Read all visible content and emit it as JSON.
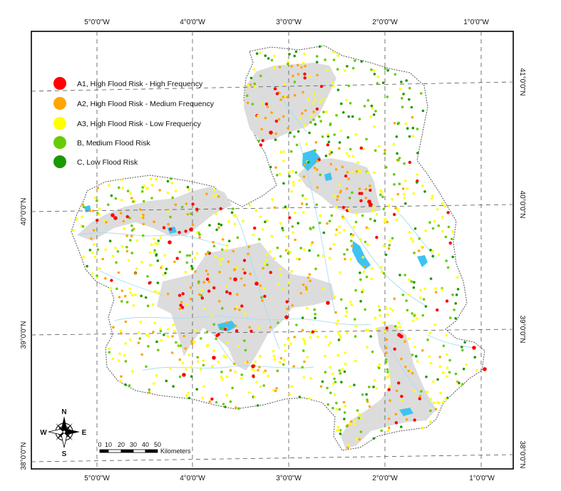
{
  "map": {
    "top_ticks": [
      "5°0'0\"W",
      "4°0'0\"W",
      "3°0'0\"W",
      "2°0'0\"W",
      "1°0'0\"W"
    ],
    "bottom_ticks": [
      "5°0'0\"W",
      "4°0'0\"W",
      "3°0'0\"W",
      "2°0'0\"W",
      "1°0'0\"W"
    ],
    "left_ticks": [
      "40°0'0\"N",
      "39°0'0\"N",
      "38°0'0\"N"
    ],
    "right_ticks": [
      "41°0'0\"N",
      "40°0'0\"N",
      "39°0'0\"N",
      "38°0'0\"N"
    ],
    "legend": [
      {
        "label": "A1, High Flood Risk - High Frequency",
        "color": "#ff0000"
      },
      {
        "label": "A2, High Flood Risk - Medium Frequency",
        "color": "#ffa500"
      },
      {
        "label": "A3, High Flood Risk - Low Frequency",
        "color": "#ffff00"
      },
      {
        "label": "B, Medium Flood Risk",
        "color": "#66cc00"
      },
      {
        "label": "C, Low Flood Risk",
        "color": "#1a9900"
      }
    ],
    "compass": {
      "n": "N",
      "s": "S",
      "e": "E",
      "w": "W"
    },
    "scale": {
      "ticks": [
        "0",
        "10",
        "20",
        "30",
        "40",
        "50"
      ],
      "unit": "Kilometers"
    },
    "colors": {
      "zone": "#dcdcdc",
      "water": "#3ec3f0",
      "river": "#a9dcf2",
      "outline": "#555555"
    }
  }
}
